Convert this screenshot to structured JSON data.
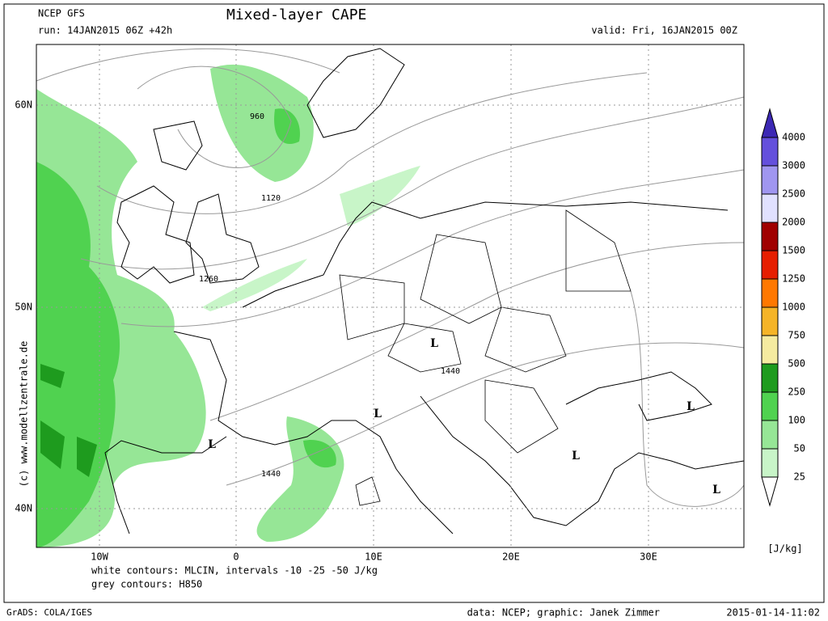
{
  "header": {
    "model": "NCEP GFS",
    "run": "run: 14JAN2015 06Z +42h",
    "title": "Mixed-layer CAPE",
    "valid": "valid: Fri, 16JAN2015 00Z"
  },
  "axes": {
    "lat_labels": [
      "60N",
      "50N",
      "40N"
    ],
    "lon_labels": [
      "10W",
      "0",
      "10E",
      "20E",
      "30E"
    ]
  },
  "map_labels": {
    "contours": [
      "960",
      "1120",
      "1260",
      "1440",
      "1440"
    ],
    "lows": [
      "L",
      "L",
      "L",
      "L",
      "L",
      "L"
    ]
  },
  "legend": {
    "levels": [
      4000,
      3000,
      2500,
      2000,
      1500,
      1250,
      1000,
      750,
      500,
      250,
      100,
      50,
      25
    ],
    "colors": [
      "#3c28b4",
      "#6450dc",
      "#a096f0",
      "#e1e1ff",
      "#a00000",
      "#e61e00",
      "#ff7800",
      "#f5b428",
      "#f5eba0",
      "#1e9b1e",
      "#50d250",
      "#96e696",
      "#c8f5c8",
      "#ffffff"
    ],
    "unit": "[J/kg]"
  },
  "notes": [
    "white contours: MLCIN, intervals -10 -25 -50 J/kg",
    "grey contours: H850"
  ],
  "credit": "(c) www.modellzentrale.de",
  "footer": {
    "left": "GrADS: COLA/IGES",
    "center": "data: NCEP; graphic: Janek Zimmer",
    "right": "2015-01-14-11:02"
  }
}
